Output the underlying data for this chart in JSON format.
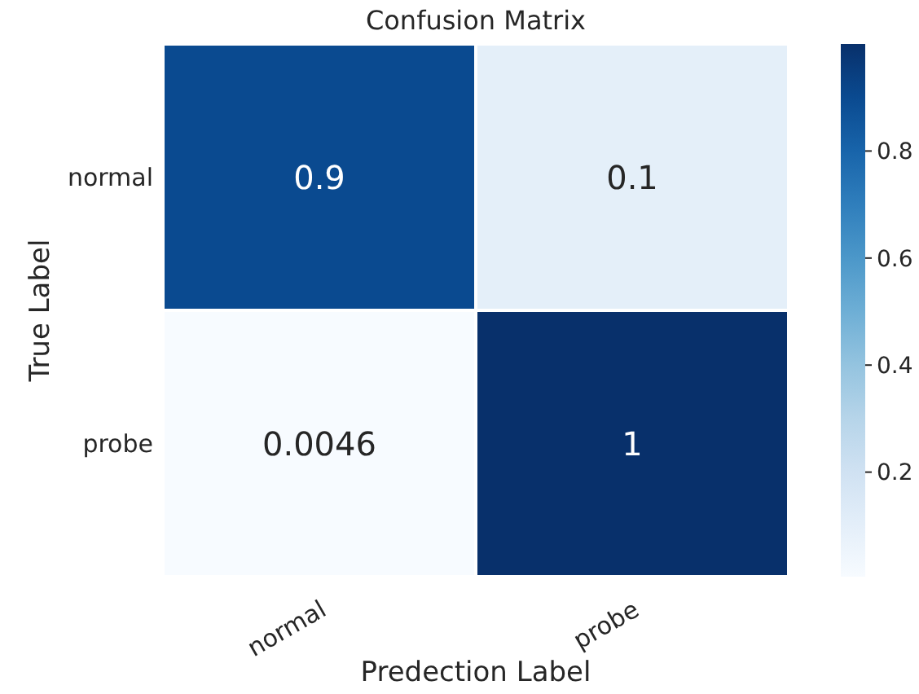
{
  "chart_data": {
    "type": "heatmap",
    "title": "Confusion Matrix",
    "xlabel": "Predection Label",
    "ylabel": "True Label",
    "categories": [
      "normal",
      "probe"
    ],
    "y_categories": [
      "normal",
      "probe"
    ],
    "cells": [
      [
        0.9,
        0.1
      ],
      [
        0.0046,
        1
      ]
    ],
    "data_labels": true,
    "clim": [
      0.0046,
      1
    ],
    "cticks": [
      0.2,
      0.4,
      0.6,
      0.8
    ]
  }
}
